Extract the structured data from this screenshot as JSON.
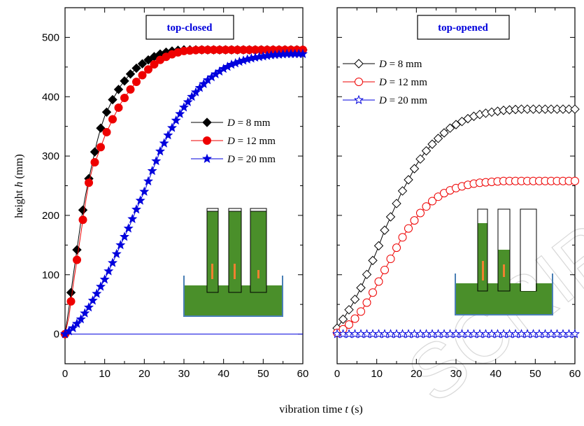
{
  "chart_data": [
    {
      "type": "line",
      "title": "top-closed",
      "xlabel_prefix": "vibration time ",
      "xlabel_var": "t",
      "xlabel_unit": " (s)",
      "ylabel_prefix": "height ",
      "ylabel_var": "h",
      "ylabel_unit": " (mm)",
      "xlim": [
        0,
        60
      ],
      "ylim": [
        -50,
        550
      ],
      "x_ticks": [
        "0",
        "10",
        "20",
        "30",
        "40",
        "50",
        "60"
      ],
      "y_ticks": [
        "0",
        "100",
        "200",
        "300",
        "400",
        "500"
      ],
      "legend_position": "center-right",
      "series": [
        {
          "name": "D = 8  mm",
          "var": "D",
          "rest": " = 8  mm",
          "color": "#000000",
          "marker": "diamond-filled",
          "x": [
            0,
            1,
            2,
            3,
            4,
            5,
            6,
            7,
            8,
            9,
            10,
            12,
            14,
            16,
            18,
            20,
            22,
            24,
            26,
            28,
            30,
            32,
            34,
            36,
            40,
            45,
            50,
            55,
            60
          ],
          "y": [
            0,
            45,
            95,
            142,
            190,
            228,
            262,
            292,
            322,
            347,
            367,
            395,
            418,
            435,
            448,
            458,
            466,
            472,
            476,
            478,
            479,
            479,
            479,
            479,
            479,
            479,
            479,
            479,
            479
          ]
        },
        {
          "name": "D = 12 mm",
          "var": "D",
          "rest": " = 12 mm",
          "color": "#ee0000",
          "marker": "circle-filled",
          "x": [
            0,
            1,
            2,
            3,
            4,
            5,
            6,
            7,
            8,
            9,
            10,
            12,
            14,
            16,
            18,
            20,
            22,
            24,
            26,
            28,
            30,
            32,
            34,
            36,
            40,
            45,
            50,
            55,
            60
          ],
          "y": [
            0,
            30,
            80,
            125,
            170,
            215,
            255,
            282,
            297,
            315,
            333,
            362,
            388,
            408,
            425,
            440,
            452,
            462,
            469,
            474,
            477,
            478,
            479,
            479,
            479,
            479,
            479,
            479,
            479
          ]
        },
        {
          "name": "D = 20 mm",
          "var": "D",
          "rest": " = 20 mm",
          "color": "#0000dd",
          "marker": "star-filled",
          "x": [
            0,
            2,
            4,
            6,
            8,
            10,
            12,
            14,
            16,
            18,
            20,
            22,
            24,
            26,
            28,
            30,
            32,
            34,
            36,
            38,
            40,
            42,
            44,
            46,
            48,
            50,
            52,
            54,
            56,
            58,
            60
          ],
          "y": [
            0,
            10,
            25,
            45,
            68,
            92,
            120,
            150,
            178,
            210,
            240,
            275,
            308,
            335,
            360,
            382,
            400,
            415,
            428,
            438,
            447,
            454,
            459,
            463,
            466,
            468,
            470,
            471,
            472,
            472,
            472
          ]
        },
        {
          "name": "",
          "color": "#0000dd",
          "marker": "none",
          "x": [
            0,
            60
          ],
          "y": [
            0,
            0
          ]
        }
      ]
    },
    {
      "type": "line",
      "title": "top-opened",
      "xlim": [
        0,
        60
      ],
      "ylim": [
        -50,
        550
      ],
      "x_ticks": [
        "0",
        "10",
        "20",
        "30",
        "40",
        "50",
        "60"
      ],
      "legend_position": "top-left",
      "series": [
        {
          "name": "D = 8 mm",
          "var": "D",
          "rest": " = 8 mm",
          "color": "#000000",
          "marker": "diamond-open",
          "x": [
            0,
            2,
            4,
            6,
            8,
            10,
            12,
            14,
            16,
            18,
            20,
            22,
            24,
            26,
            28,
            30,
            32,
            34,
            36,
            38,
            40,
            42,
            44,
            46,
            48,
            50,
            52,
            54,
            56,
            58,
            60
          ],
          "y": [
            10,
            30,
            52,
            78,
            108,
            140,
            175,
            205,
            235,
            260,
            285,
            305,
            320,
            333,
            345,
            353,
            360,
            366,
            370,
            373,
            375,
            377,
            378,
            379,
            379,
            379,
            379,
            379,
            379,
            379,
            379
          ]
        },
        {
          "name": "D = 12 mm",
          "var": "D",
          "rest": " = 12 mm",
          "color": "#ee0000",
          "marker": "circle-open",
          "x": [
            0,
            2,
            4,
            6,
            8,
            10,
            12,
            14,
            16,
            18,
            20,
            22,
            24,
            26,
            28,
            30,
            32,
            34,
            36,
            38,
            40,
            42,
            44,
            46,
            48,
            50,
            52,
            54,
            56,
            58,
            60
          ],
          "y": [
            2,
            10,
            22,
            38,
            58,
            82,
            108,
            133,
            158,
            178,
            196,
            212,
            224,
            234,
            241,
            246,
            250,
            253,
            255,
            256,
            257,
            258,
            258,
            258,
            258,
            258,
            258,
            258,
            258,
            258,
            258
          ]
        },
        {
          "name": "D = 20 mm",
          "var": "D",
          "rest": " = 20 mm",
          "color": "#0000dd",
          "marker": "star-open",
          "x": [
            0,
            2,
            4,
            6,
            8,
            10,
            12,
            14,
            16,
            18,
            20,
            22,
            24,
            26,
            28,
            30,
            32,
            34,
            36,
            38,
            40,
            42,
            44,
            46,
            48,
            50,
            52,
            54,
            56,
            58,
            60
          ],
          "y": [
            0,
            0,
            0,
            0,
            0,
            0,
            0,
            0,
            0,
            0,
            0,
            0,
            0,
            0,
            0,
            0,
            0,
            0,
            0,
            0,
            0,
            0,
            0,
            0,
            0,
            0,
            0,
            0,
            0,
            0,
            0
          ]
        }
      ]
    }
  ],
  "colors": {
    "granular_fill": "#4a8f2a",
    "granule_dot": "#c0392b",
    "container_stroke": "#4a7fb5",
    "marker_bar": "#f08030"
  },
  "watermark": "SCRIPT"
}
